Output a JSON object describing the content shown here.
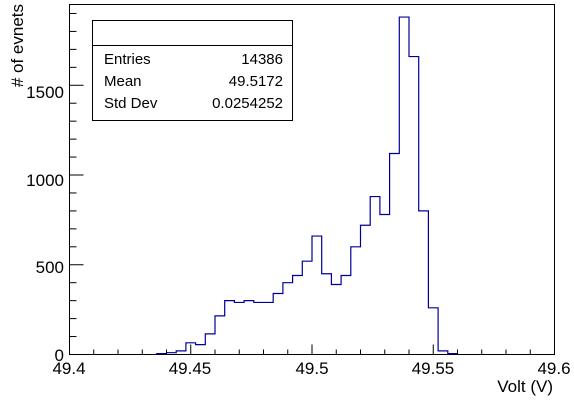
{
  "chart_data": {
    "type": "histogram",
    "title": "",
    "xlabel": "Volt (V)",
    "ylabel": "# of evnets",
    "xlim": [
      49.4,
      49.6
    ],
    "ylim": [
      0,
      1950
    ],
    "x_ticks": [
      "49.4",
      "49.45",
      "49.5",
      "49.55",
      "49.6"
    ],
    "y_ticks": [
      "0",
      "500",
      "1000",
      "1500"
    ],
    "bin_width": 0.004,
    "bins": [
      {
        "x0": 49.436,
        "value": 5
      },
      {
        "x0": 49.44,
        "value": 10
      },
      {
        "x0": 49.444,
        "value": 20
      },
      {
        "x0": 49.448,
        "value": 65
      },
      {
        "x0": 49.452,
        "value": 55
      },
      {
        "x0": 49.456,
        "value": 115
      },
      {
        "x0": 49.46,
        "value": 215
      },
      {
        "x0": 49.464,
        "value": 300
      },
      {
        "x0": 49.468,
        "value": 290
      },
      {
        "x0": 49.472,
        "value": 300
      },
      {
        "x0": 49.476,
        "value": 290
      },
      {
        "x0": 49.48,
        "value": 290
      },
      {
        "x0": 49.484,
        "value": 340
      },
      {
        "x0": 49.488,
        "value": 400
      },
      {
        "x0": 49.492,
        "value": 440
      },
      {
        "x0": 49.496,
        "value": 520
      },
      {
        "x0": 49.5,
        "value": 660
      },
      {
        "x0": 49.504,
        "value": 450
      },
      {
        "x0": 49.508,
        "value": 390
      },
      {
        "x0": 49.512,
        "value": 440
      },
      {
        "x0": 49.516,
        "value": 600
      },
      {
        "x0": 49.52,
        "value": 720
      },
      {
        "x0": 49.524,
        "value": 880
      },
      {
        "x0": 49.528,
        "value": 780
      },
      {
        "x0": 49.532,
        "value": 1120
      },
      {
        "x0": 49.536,
        "value": 1880
      },
      {
        "x0": 49.54,
        "value": 1660
      },
      {
        "x0": 49.544,
        "value": 800
      },
      {
        "x0": 49.548,
        "value": 260
      },
      {
        "x0": 49.552,
        "value": 20
      },
      {
        "x0": 49.556,
        "value": 5
      }
    ],
    "line_color": "#000099",
    "grid": false,
    "legend": "none"
  },
  "stats": {
    "rows": [
      {
        "label": "Entries",
        "value": "14386"
      },
      {
        "label": "Mean",
        "value": "49.5172"
      },
      {
        "label": "Std Dev",
        "value": "0.0254252"
      }
    ]
  }
}
